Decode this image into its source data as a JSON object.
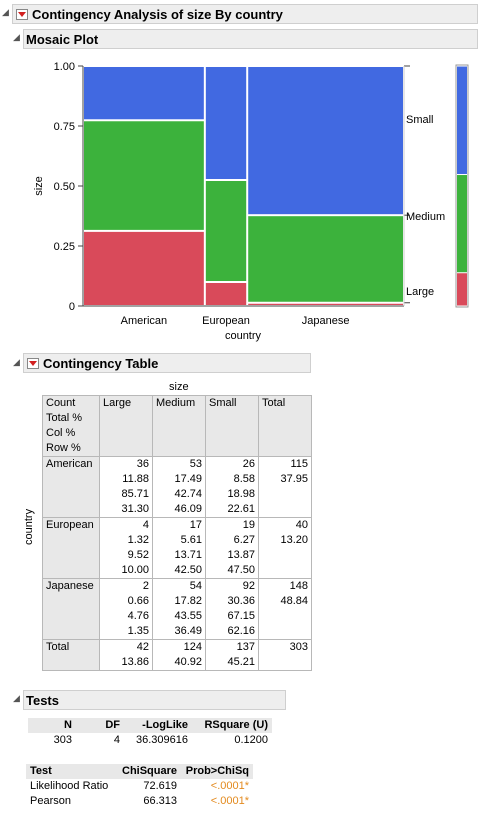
{
  "report": {
    "title": "Contingency Analysis of size By country",
    "mosaic_title": "Mosaic Plot",
    "table_title": "Contingency Table",
    "tests_title": "Tests"
  },
  "colors": {
    "Small": "#4169e1",
    "Medium": "#3cb23c",
    "Large": "#d94a5a"
  },
  "chart_data": {
    "type": "mosaic",
    "xlabel": "country",
    "ylabel": "size",
    "ylim": [
      0,
      1
    ],
    "yticks": [
      "0",
      "0.25",
      "0.50",
      "0.75",
      "1.00"
    ],
    "categories": [
      "American",
      "European",
      "Japanese"
    ],
    "category_totals": [
      115,
      40,
      148
    ],
    "levels": [
      "Large",
      "Medium",
      "Small"
    ],
    "proportions": {
      "American": [
        0.313,
        0.4609,
        0.2261
      ],
      "European": [
        0.1,
        0.425,
        0.475
      ],
      "Japanese": [
        0.0135,
        0.3649,
        0.6216
      ]
    },
    "marginal": [
      0.1386,
      0.4092,
      0.4521
    ]
  },
  "contingency": {
    "col_var": "size",
    "row_var": "country",
    "stat_labels": [
      "Count",
      "Total %",
      "Col %",
      "Row %"
    ],
    "columns": [
      "Large",
      "Medium",
      "Small",
      "Total"
    ],
    "rows": [
      {
        "name": "American",
        "count": [
          "36",
          "53",
          "26",
          "115"
        ],
        "total_pct": [
          "11.88",
          "17.49",
          "8.58",
          "37.95"
        ],
        "col_pct": [
          "85.71",
          "42.74",
          "18.98",
          ""
        ],
        "row_pct": [
          "31.30",
          "46.09",
          "22.61",
          ""
        ]
      },
      {
        "name": "European",
        "count": [
          "4",
          "17",
          "19",
          "40"
        ],
        "total_pct": [
          "1.32",
          "5.61",
          "6.27",
          "13.20"
        ],
        "col_pct": [
          "9.52",
          "13.71",
          "13.87",
          ""
        ],
        "row_pct": [
          "10.00",
          "42.50",
          "47.50",
          ""
        ]
      },
      {
        "name": "Japanese",
        "count": [
          "2",
          "54",
          "92",
          "148"
        ],
        "total_pct": [
          "0.66",
          "17.82",
          "30.36",
          "48.84"
        ],
        "col_pct": [
          "4.76",
          "43.55",
          "67.15",
          ""
        ],
        "row_pct": [
          "1.35",
          "36.49",
          "62.16",
          ""
        ]
      }
    ],
    "total": {
      "name": "Total",
      "count": [
        "42",
        "124",
        "137",
        "303"
      ],
      "pct": [
        "13.86",
        "40.92",
        "45.21",
        ""
      ]
    }
  },
  "tests": {
    "summary_headers": [
      "N",
      "DF",
      "-LogLike",
      "RSquare (U)"
    ],
    "summary_values": [
      "303",
      "4",
      "36.309616",
      "0.1200"
    ],
    "chi_headers": [
      "Test",
      "ChiSquare",
      "Prob>ChiSq"
    ],
    "chi_rows": [
      [
        "Likelihood Ratio",
        "72.619",
        "<.0001*"
      ],
      [
        "Pearson",
        "66.313",
        "<.0001*"
      ]
    ]
  }
}
